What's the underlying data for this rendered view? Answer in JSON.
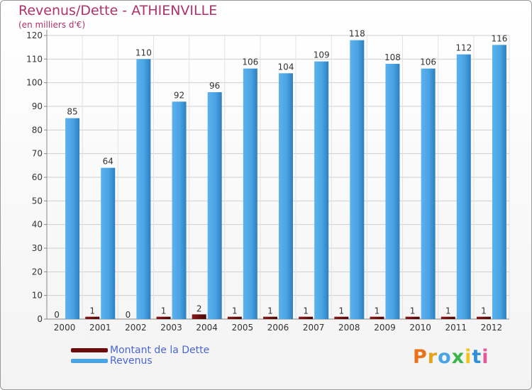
{
  "title": "Revenus/Dette - ATHIENVILLE",
  "subtitle": "(en milliers d'€)",
  "logo_text": "Proxiti",
  "colors": {
    "revenus": "#4aa3e3",
    "dette": "#6b0b0b",
    "title": "#b0306a",
    "legend_text": "#4a66d6",
    "grid": "#cfcfcf"
  },
  "legend": [
    {
      "label": "Montant de la Dette",
      "color": "#6b0b0b"
    },
    {
      "label": "Revenus",
      "color": "#4aa3e3"
    }
  ],
  "chart_data": {
    "type": "bar",
    "title": "Revenus/Dette - ATHIENVILLE",
    "subtitle": "(en milliers d'€)",
    "categories": [
      "2000",
      "2001",
      "2002",
      "2003",
      "2004",
      "2005",
      "2006",
      "2007",
      "2008",
      "2009",
      "2010",
      "2011",
      "2012"
    ],
    "series": [
      {
        "name": "Montant de la Dette",
        "values": [
          0,
          1,
          0,
          1,
          2,
          1,
          1,
          1,
          1,
          1,
          1,
          1,
          1
        ]
      },
      {
        "name": "Revenus",
        "values": [
          85,
          64,
          110,
          92,
          96,
          106,
          104,
          109,
          118,
          108,
          106,
          112,
          116
        ]
      }
    ],
    "ylim": [
      0,
      120
    ],
    "yticks": [
      0,
      10,
      20,
      30,
      40,
      50,
      60,
      70,
      80,
      90,
      100,
      110,
      120
    ],
    "grid": true,
    "legend_position": "bottom-left"
  }
}
